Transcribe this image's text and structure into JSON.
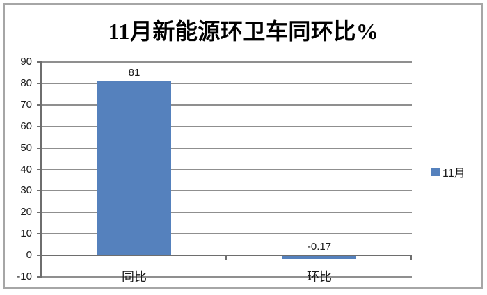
{
  "chart_data": {
    "type": "bar",
    "title": "11月新能源环卫车同环比%",
    "categories": [
      "同比",
      "环比"
    ],
    "series": [
      {
        "name": "11月",
        "values": [
          81,
          -0.17
        ]
      }
    ],
    "value_labels": [
      "81",
      "-0.17"
    ],
    "xlabel": "",
    "ylabel": "",
    "ylim": [
      -10,
      90
    ],
    "yticks": [
      90,
      80,
      70,
      60,
      50,
      40,
      30,
      20,
      10,
      0,
      -10
    ],
    "grid": true,
    "legend_position": "right",
    "bar_color": "#5581BD"
  },
  "legend": {
    "items": [
      {
        "label": "11月",
        "color": "#5581BD"
      }
    ]
  },
  "colors": {
    "bar": "#5581BD",
    "gridline": "#8f8f8f",
    "axis": "#6e6e6e",
    "frame_border": "#a6a6a6",
    "background": "#ffffff",
    "text": "#1a1a1a"
  }
}
